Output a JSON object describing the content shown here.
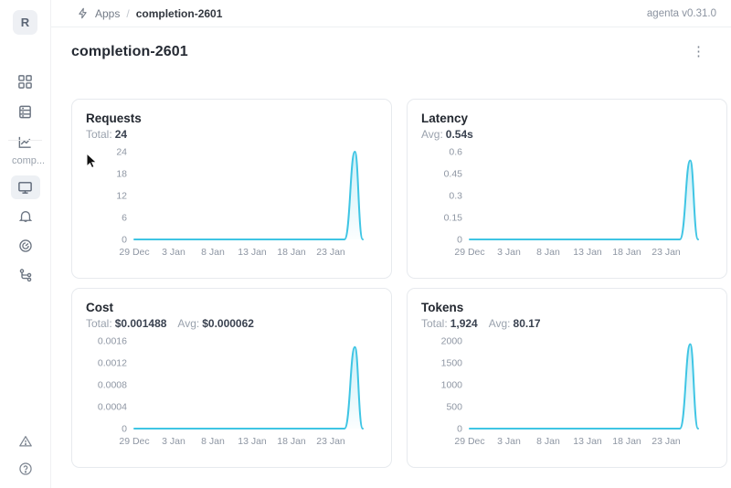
{
  "header": {
    "breadcrumb": {
      "apps_label": "Apps",
      "separator": "/",
      "current": "completion-2601"
    },
    "version": "agenta v0.31.0"
  },
  "sidebar": {
    "avatar_letter": "R",
    "workspace_label": "comp...",
    "items_top": [
      "apps",
      "datasets",
      "observability-chart"
    ],
    "items_mid": [
      "overview (selected)",
      "notifications",
      "gauge",
      "traces"
    ],
    "items_bottom": [
      "alerts",
      "help"
    ]
  },
  "page": {
    "title": "completion-2601"
  },
  "icons": {
    "kebab_menu": "⋮",
    "help_glyph": "?"
  },
  "colors": {
    "line": "#3fc5e4",
    "axis_text": "#8e96a3",
    "card_border": "#e7eaee"
  },
  "cards": [
    {
      "title": "Requests",
      "stats": [
        {
          "label": "Total:",
          "value": "24"
        }
      ],
      "chart": {
        "type": "line",
        "color": "#3fc5e4",
        "y_axis_max": 24,
        "y_tick_labels": [
          "24",
          "18",
          "12",
          "6",
          "0"
        ],
        "x_tick_labels": [
          "29 Dec",
          "3 Jan",
          "8 Jan",
          "13 Jan",
          "18 Jan",
          "23 Jan"
        ],
        "peak_value": 24,
        "series_description": "flat at 0 from 29 Dec to ~25 Jan, single spike to 24 near 26 Jan, returns to 0"
      }
    },
    {
      "title": "Latency",
      "stats": [
        {
          "label": "Avg:",
          "value": "0.54s"
        }
      ],
      "chart": {
        "type": "line",
        "color": "#3fc5e4",
        "y_axis_max": 0.6,
        "y_tick_labels": [
          "0.6",
          "0.45",
          "0.3",
          "0.15",
          "0"
        ],
        "x_tick_labels": [
          "29 Dec",
          "3 Jan",
          "8 Jan",
          "13 Jan",
          "18 Jan",
          "23 Jan"
        ],
        "peak_value": 0.54,
        "series_description": "flat at 0 from 29 Dec to ~25 Jan, single spike to ~0.54s near 26 Jan, returns to 0"
      }
    },
    {
      "title": "Cost",
      "stats": [
        {
          "label": "Total:",
          "value": "$0.001488"
        },
        {
          "label": "Avg:",
          "value": "$0.000062"
        }
      ],
      "chart": {
        "type": "line",
        "color": "#3fc5e4",
        "y_axis_max": 0.0016,
        "y_tick_labels": [
          "0.0016",
          "0.0012",
          "0.0008",
          "0.0004",
          "0"
        ],
        "x_tick_labels": [
          "29 Dec",
          "3 Jan",
          "8 Jan",
          "13 Jan",
          "18 Jan",
          "23 Jan"
        ],
        "peak_value": 0.001488,
        "series_description": "flat at 0 from 29 Dec to ~25 Jan, single spike to ~$0.0015 near 26 Jan, returns to 0"
      }
    },
    {
      "title": "Tokens",
      "stats": [
        {
          "label": "Total:",
          "value": "1,924"
        },
        {
          "label": "Avg:",
          "value": "80.17"
        }
      ],
      "chart": {
        "type": "line",
        "color": "#3fc5e4",
        "y_axis_max": 2000,
        "y_tick_labels": [
          "2000",
          "1500",
          "1000",
          "500",
          "0"
        ],
        "x_tick_labels": [
          "29 Dec",
          "3 Jan",
          "8 Jan",
          "13 Jan",
          "18 Jan",
          "23 Jan"
        ],
        "peak_value": 1924,
        "series_description": "flat at 0 from 29 Dec to ~25 Jan, single spike to ~1924 near 26 Jan, returns to 0"
      }
    }
  ]
}
